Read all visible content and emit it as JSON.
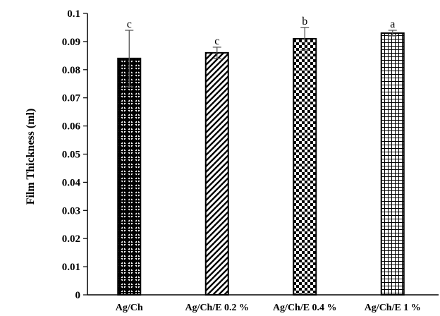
{
  "chart_data": {
    "type": "bar",
    "ylabel": "Film Thickness (ml)",
    "xlabel": "",
    "title": "",
    "ylim": [
      0,
      0.1
    ],
    "yticks": [
      "0",
      "0.01",
      "0.02",
      "0.03",
      "0.04",
      "0.05",
      "0.06",
      "0.07",
      "0.08",
      "0.09",
      "0.1"
    ],
    "categories": [
      "Ag/Ch",
      "Ag/Ch/E 0.2 %",
      "Ag/Ch/E 0.4 %",
      "Ag/Ch/E 1 %"
    ],
    "values": [
      0.084,
      0.086,
      0.091,
      0.093
    ],
    "errors": [
      0.01,
      0.002,
      0.004,
      0.001
    ],
    "significance": [
      "c",
      "c",
      "b",
      "a"
    ],
    "patterns": [
      "diamond-plaid",
      "diagonal-stripes",
      "checkerboard",
      "fine-grid"
    ],
    "bar_color": "#000000",
    "background": "#ffffff",
    "grid": false,
    "legend": "none"
  }
}
